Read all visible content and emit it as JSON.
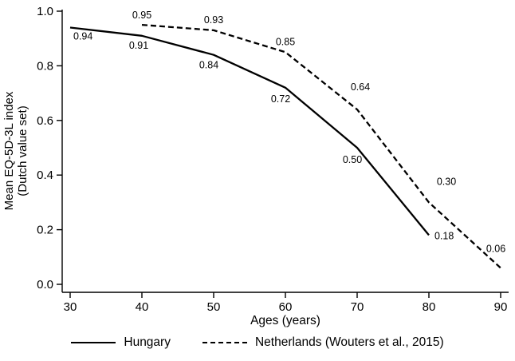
{
  "figure": {
    "xlabel": "Ages (years)",
    "ylabel_line1": "Mean EQ-5D-3L index",
    "ylabel_line2": "(Dutch value set)"
  },
  "legend": {
    "items": [
      {
        "label": "Hungary",
        "line_style": "solid"
      },
      {
        "label": "Netherlands (Wouters et al., 2015)",
        "line_style": "dashed"
      }
    ]
  },
  "chart_data": {
    "type": "line",
    "title": "",
    "xlabel": "Ages (years)",
    "ylabel": "Mean EQ-5D-3L index (Dutch value set)",
    "x": [
      30,
      40,
      50,
      60,
      70,
      80,
      90
    ],
    "xticks": [
      30,
      40,
      50,
      60,
      70,
      80,
      90
    ],
    "yticks": [
      0.0,
      0.2,
      0.4,
      0.6,
      0.8,
      1.0
    ],
    "xlim": [
      30,
      90
    ],
    "ylim": [
      0.0,
      1.0
    ],
    "grid": false,
    "legend_position": "bottom",
    "line_color": "#000000",
    "series": [
      {
        "name": "Hungary",
        "dash": "solid",
        "values": [
          0.94,
          0.91,
          0.84,
          0.72,
          0.5,
          0.18,
          null
        ],
        "labels": [
          {
            "text": "0.94",
            "dx": 4,
            "dy": 15,
            "anchor": "start"
          },
          {
            "text": "0.91",
            "dx": -4,
            "dy": 16,
            "anchor": "middle"
          },
          {
            "text": "0.84",
            "dx": -6,
            "dy": 17,
            "anchor": "middle"
          },
          {
            "text": "0.72",
            "dx": -6,
            "dy": 18,
            "anchor": "middle"
          },
          {
            "text": "0.50",
            "dx": -6,
            "dy": 19,
            "anchor": "middle"
          },
          {
            "text": "0.18",
            "dx": 7,
            "dy": 5,
            "anchor": "start"
          },
          null
        ]
      },
      {
        "name": "Netherlands (Wouters et al., 2015)",
        "dash": "dashed",
        "values": [
          null,
          0.95,
          0.93,
          0.85,
          0.64,
          0.3,
          0.06
        ],
        "labels": [
          null,
          {
            "text": "0.95",
            "dx": 0,
            "dy": -8,
            "anchor": "middle"
          },
          {
            "text": "0.93",
            "dx": 0,
            "dy": -9,
            "anchor": "middle"
          },
          {
            "text": "0.85",
            "dx": 0,
            "dy": -9,
            "anchor": "middle"
          },
          {
            "text": "0.64",
            "dx": 4,
            "dy": -24,
            "anchor": "middle"
          },
          {
            "text": "0.30",
            "dx": 22,
            "dy": -22,
            "anchor": "middle"
          },
          {
            "text": "0.06",
            "dx": -6,
            "dy": -20,
            "anchor": "middle"
          }
        ]
      }
    ]
  }
}
